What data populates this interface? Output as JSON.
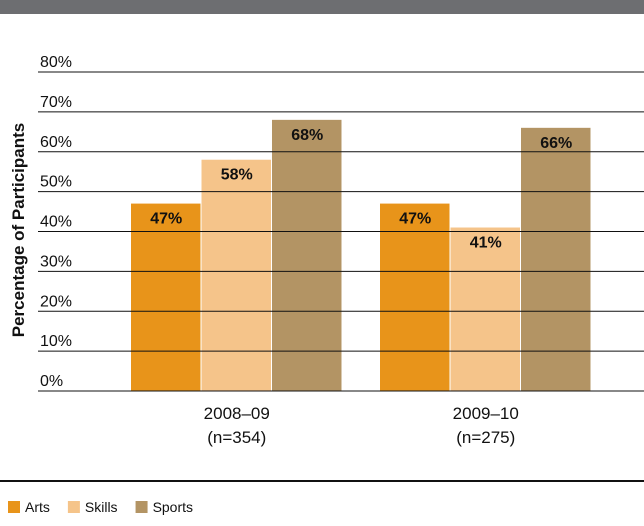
{
  "chart_data": {
    "type": "bar",
    "y_label": "Percentage of Participants",
    "categories": [
      "2008–09",
      "2009–10"
    ],
    "category_notes": [
      "(n=354)",
      "(n=275)"
    ],
    "series": [
      {
        "name": "Arts",
        "color": "#e8941a",
        "values": [
          47,
          47
        ],
        "value_labels": [
          "47%",
          "47%"
        ]
      },
      {
        "name": "Skills",
        "color": "#f5c48a",
        "values": [
          58,
          41
        ],
        "value_labels": [
          "58%",
          "41%"
        ]
      },
      {
        "name": "Sports",
        "color": "#b39464",
        "values": [
          68,
          66
        ],
        "value_labels": [
          "68%",
          "66%"
        ]
      }
    ],
    "ylim": [
      0,
      80
    ],
    "yticks": [
      {
        "value": 0,
        "label": "0%"
      },
      {
        "value": 10,
        "label": "10%"
      },
      {
        "value": 20,
        "label": "20%"
      },
      {
        "value": 30,
        "label": "30%"
      },
      {
        "value": 40,
        "label": "40%"
      },
      {
        "value": 50,
        "label": "50%"
      },
      {
        "value": 60,
        "label": "60%"
      },
      {
        "value": 70,
        "label": "70%"
      },
      {
        "value": 80,
        "label": "80%"
      }
    ],
    "grid": true
  }
}
